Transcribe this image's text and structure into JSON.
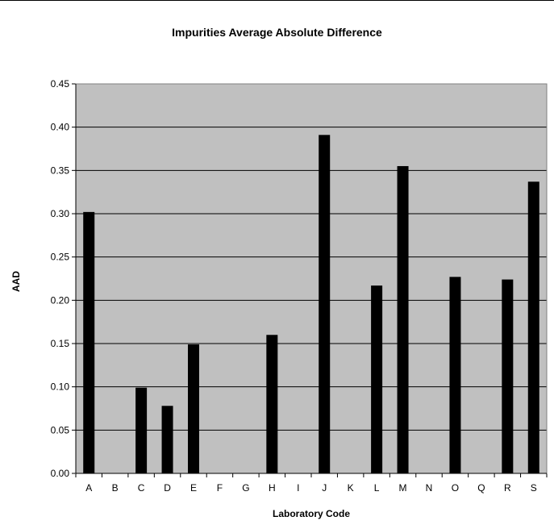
{
  "chart_data": {
    "type": "bar",
    "title": "Impurities Average Absolute Difference",
    "xlabel": "Laboratory Code",
    "ylabel": "AAD",
    "categories": [
      "A",
      "B",
      "C",
      "D",
      "E",
      "F",
      "G",
      "H",
      "I",
      "J",
      "K",
      "L",
      "M",
      "N",
      "O",
      "Q",
      "R",
      "S"
    ],
    "values": [
      0.302,
      0,
      0.099,
      0.078,
      0.149,
      0,
      0,
      0.16,
      0,
      0.391,
      0,
      0.217,
      0.355,
      0,
      0.227,
      0,
      0.224,
      0.337
    ],
    "ylim": [
      0,
      0.45
    ],
    "yticks": [
      "0.00",
      "0.05",
      "0.10",
      "0.15",
      "0.20",
      "0.25",
      "0.30",
      "0.35",
      "0.40",
      "0.45"
    ],
    "grid": true,
    "legend": "none",
    "colors": {
      "plot_background": "#c0c0c0",
      "bar": "#000000",
      "gridline": "#000000"
    }
  }
}
